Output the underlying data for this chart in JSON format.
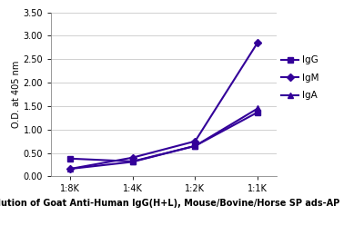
{
  "x_labels": [
    "1:8K",
    "1:4K",
    "1:2K",
    "1:1K"
  ],
  "x_values": [
    1,
    2,
    3,
    4
  ],
  "IgG": [
    0.38,
    0.32,
    0.65,
    1.37
  ],
  "IgM": [
    0.16,
    0.4,
    0.75,
    2.86
  ],
  "IgA": [
    0.16,
    0.31,
    0.65,
    1.45
  ],
  "line_color": "#330099",
  "ylabel": "O.D. at 405 nm",
  "xlabel": "Dilution of Goat Anti-Human IgG(H+L), Mouse/Bovine/Horse SP ads-AP",
  "ylim": [
    0,
    3.5
  ],
  "yticks": [
    0.0,
    0.5,
    1.0,
    1.5,
    2.0,
    2.5,
    3.0,
    3.5
  ],
  "tick_fontsize": 7,
  "ylabel_fontsize": 7,
  "xlabel_fontsize": 7,
  "legend_fontsize": 7.5,
  "marker_size": 4,
  "line_width": 1.5,
  "grid_color": "#d0d0d0",
  "background_color": "#ffffff"
}
